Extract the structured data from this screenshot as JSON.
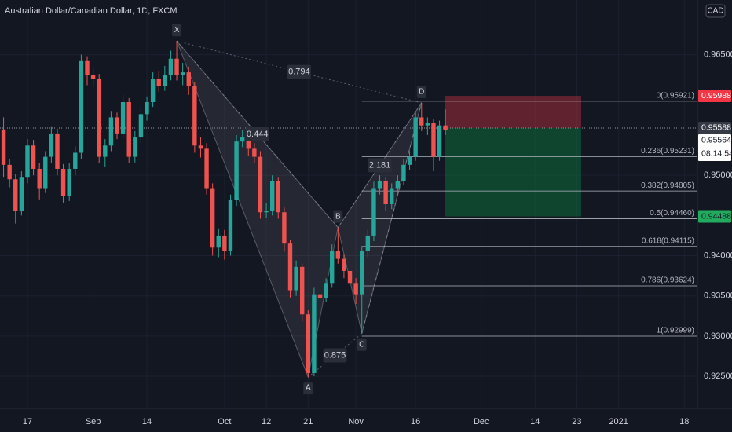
{
  "chart_data": {
    "type": "candlestick",
    "title": "Australian Dollar/Canadian Dollar, 1D, FXCM",
    "currency": "CAD",
    "up_color": "#26a69a",
    "down_color": "#ef5350",
    "categories": [
      null,
      null,
      null,
      null,
      null,
      null,
      null,
      null,
      null,
      null,
      null,
      null,
      null,
      null,
      null,
      null,
      null,
      null,
      null,
      null,
      null,
      null,
      null,
      null,
      null,
      null,
      null,
      null,
      null,
      null,
      null,
      null,
      null,
      null,
      null,
      null,
      null,
      null,
      null,
      null,
      null,
      null,
      null,
      null,
      null,
      null,
      null,
      null,
      null,
      null,
      null,
      null,
      null,
      null,
      null,
      null,
      null,
      null,
      null,
      null,
      null,
      null,
      null,
      null,
      null,
      null,
      null,
      null,
      null,
      null,
      null,
      null,
      null,
      null,
      null
    ],
    "open": [
      0.9557,
      0.9513,
      0.9495,
      0.9456,
      0.9498,
      0.9537,
      0.9508,
      0.9484,
      0.9523,
      0.9552,
      0.9508,
      0.9474,
      0.9508,
      0.9528,
      0.9642,
      0.9625,
      0.962,
      0.9523,
      0.9537,
      0.9572,
      0.9552,
      0.9591,
      0.9523,
      0.9547,
      0.9576,
      0.9591,
      0.962,
      0.9611,
      0.9625,
      0.9645,
      0.9625,
      0.9628,
      0.9611,
      0.9537,
      0.9533,
      0.9484,
      0.941,
      0.9425,
      0.9406,
      0.9469,
      0.9542,
      0.9547,
      0.9533,
      0.9523,
      0.9454,
      0.9456,
      0.9493,
      0.9454,
      0.9415,
      0.9357,
      0.9386,
      0.9327,
      0.9254,
      0.9352,
      0.9347,
      0.9366,
      0.9406,
      0.9396,
      0.9381,
      0.9366,
      0.9352,
      0.9406,
      0.9425,
      0.9484,
      0.9493,
      0.9464,
      0.9484,
      0.9493,
      0.9513,
      0.9523,
      0.9572,
      0.9562,
      0.9565,
      0.9523,
      0.9562
    ],
    "high": [
      0.9572,
      0.952,
      0.9502,
      0.9505,
      0.9545,
      0.9544,
      0.9515,
      0.953,
      0.956,
      0.9558,
      0.9514,
      0.9515,
      0.9536,
      0.965,
      0.9648,
      0.9634,
      0.9626,
      0.9545,
      0.958,
      0.9578,
      0.96,
      0.9596,
      0.9555,
      0.9584,
      0.9598,
      0.9628,
      0.963,
      0.9636,
      0.9655,
      0.9667,
      0.964,
      0.9635,
      0.9616,
      0.9548,
      0.954,
      0.949,
      0.9434,
      0.9432,
      0.9476,
      0.955,
      0.9556,
      0.9552,
      0.954,
      0.953,
      0.9465,
      0.95,
      0.9498,
      0.946,
      0.942,
      0.9394,
      0.939,
      0.9332,
      0.936,
      0.9358,
      0.9372,
      0.9414,
      0.9435,
      0.9402,
      0.9388,
      0.9372,
      0.9412,
      0.9432,
      0.9492,
      0.95,
      0.9498,
      0.949,
      0.95,
      0.952,
      0.953,
      0.958,
      0.959,
      0.9572,
      0.957,
      0.9568,
      0.9582
    ],
    "low": [
      0.9498,
      0.9485,
      0.944,
      0.945,
      0.949,
      0.95,
      0.947,
      0.9478,
      0.9515,
      0.95,
      0.9466,
      0.9468,
      0.95,
      0.952,
      0.9612,
      0.961,
      0.9515,
      0.951,
      0.953,
      0.9545,
      0.9546,
      0.9515,
      0.9516,
      0.954,
      0.9568,
      0.9585,
      0.9604,
      0.9605,
      0.9618,
      0.9618,
      0.9612,
      0.96,
      0.9528,
      0.9522,
      0.9476,
      0.94,
      0.9398,
      0.9395,
      0.94,
      0.9462,
      0.9535,
      0.9524,
      0.9515,
      0.9446,
      0.9447,
      0.945,
      0.9446,
      0.9405,
      0.9348,
      0.935,
      0.9318,
      0.9249,
      0.925,
      0.934,
      0.9342,
      0.936,
      0.939,
      0.9372,
      0.9358,
      0.934,
      0.9303,
      0.9398,
      0.9418,
      0.9476,
      0.9456,
      0.9458,
      0.9478,
      0.9488,
      0.9506,
      0.9518,
      0.9555,
      0.955,
      0.9505,
      0.9518,
      0.955
    ],
    "close": [
      0.9513,
      0.9495,
      0.9456,
      0.9498,
      0.9537,
      0.9508,
      0.9484,
      0.9523,
      0.9552,
      0.9508,
      0.9474,
      0.9508,
      0.9528,
      0.9642,
      0.9625,
      0.962,
      0.9523,
      0.9537,
      0.9572,
      0.9552,
      0.9591,
      0.9523,
      0.9547,
      0.9576,
      0.9591,
      0.962,
      0.9611,
      0.9625,
      0.9645,
      0.9625,
      0.9628,
      0.9611,
      0.9537,
      0.9533,
      0.9484,
      0.941,
      0.9425,
      0.9406,
      0.9469,
      0.9542,
      0.9547,
      0.9533,
      0.9523,
      0.9454,
      0.9456,
      0.9493,
      0.9454,
      0.9415,
      0.9357,
      0.9386,
      0.9327,
      0.9254,
      0.9352,
      0.9347,
      0.9366,
      0.9406,
      0.9396,
      0.9381,
      0.9366,
      0.9352,
      0.9406,
      0.9425,
      0.9484,
      0.9493,
      0.9464,
      0.9484,
      0.9493,
      0.9513,
      0.9523,
      0.9572,
      0.9562,
      0.9565,
      0.9523,
      0.9562,
      0.9556
    ],
    "xlim": [
      -0.6,
      116.2
    ],
    "xticks": [
      {
        "value": 4,
        "label": "17"
      },
      {
        "value": 15,
        "label": "Sep"
      },
      {
        "value": 24,
        "label": "14"
      },
      {
        "value": 37,
        "label": "Oct"
      },
      {
        "value": 44,
        "label": "12"
      },
      {
        "value": 51,
        "label": "21"
      },
      {
        "value": 59,
        "label": "Nov"
      },
      {
        "value": 69,
        "label": "16"
      },
      {
        "value": 80,
        "label": "Dec"
      },
      {
        "value": 89,
        "label": "14"
      },
      {
        "value": 96,
        "label": "23"
      },
      {
        "value": 103,
        "label": "2021"
      },
      {
        "value": 114,
        "label": "18"
      }
    ],
    "ylim": [
      0.921,
      0.9718
    ],
    "yticks": [
      {
        "value": 0.965,
        "label": "0.96500"
      },
      {
        "value": 0.95,
        "label": "0.95000"
      },
      {
        "value": 0.94,
        "label": "0.94000"
      },
      {
        "value": 0.935,
        "label": "0.93500"
      },
      {
        "value": 0.93,
        "label": "0.93000"
      },
      {
        "value": 0.925,
        "label": "0.92500"
      }
    ],
    "grid": true,
    "pattern": {
      "points": [
        {
          "label": "X",
          "index": 29,
          "price": 0.9667
        },
        {
          "label": "A",
          "index": 51,
          "price": 0.9249
        },
        {
          "label": "B",
          "index": 56,
          "price": 0.9435
        },
        {
          "label": "C",
          "index": 60,
          "price": 0.9303
        },
        {
          "label": "D",
          "index": 70,
          "price": 0.959
        }
      ],
      "ratios": [
        0.794,
        0.444,
        2.181,
        0.875
      ]
    },
    "fib_levels": [
      {
        "label": "0(0.95921)",
        "value": 0.95921
      },
      {
        "label": "0.236(0.95231)",
        "value": 0.95231
      },
      {
        "label": "0.382(0.94805)",
        "value": 0.94805
      },
      {
        "label": "0.5(0.94460)",
        "value": 0.9446
      },
      {
        "label": "0.618(0.94115)",
        "value": 0.94115
      },
      {
        "label": "0.786(0.93624)",
        "value": 0.93624
      },
      {
        "label": "1(0.92999)",
        "value": 0.92999
      }
    ],
    "position": {
      "stop": 0.95988,
      "entry": 0.95588,
      "target": 0.94488
    },
    "price_tags": [
      {
        "label": "0.95988",
        "value": 0.95988,
        "color": "#f23645",
        "text_color": "#ffffff"
      },
      {
        "label": "0.95588",
        "value": 0.95588,
        "color": "#363a45",
        "text_color": "#ffffff"
      },
      {
        "label": "0.95564",
        "value": 0.95564,
        "color": "#ffffff",
        "text_color": "#131722"
      },
      {
        "label": "0.94488",
        "value": 0.94488,
        "color": "#22ab5e",
        "text_color": "#131722"
      }
    ],
    "countdown": "08:14:54"
  }
}
